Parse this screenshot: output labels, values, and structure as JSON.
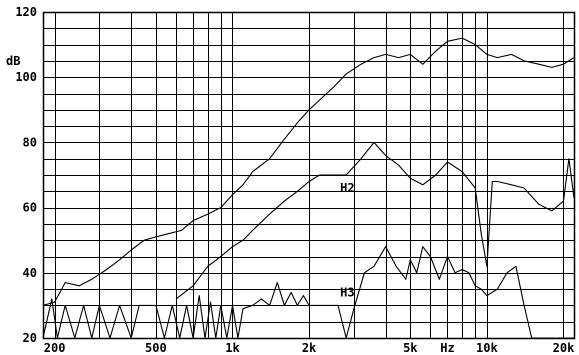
{
  "chart_data": {
    "type": "line",
    "title": "",
    "xlabel": "Hz",
    "ylabel": "dB",
    "x_scale": "log",
    "xlim": [
      180,
      22000
    ],
    "ylim": [
      20,
      120
    ],
    "grid": true,
    "x_ticks": [
      {
        "value": 200,
        "label": "200"
      },
      {
        "value": 500,
        "label": "500"
      },
      {
        "value": 1000,
        "label": "1k"
      },
      {
        "value": 2000,
        "label": "2k"
      },
      {
        "value": 5000,
        "label": "5k"
      },
      {
        "value": 10000,
        "label": "10k"
      },
      {
        "value": 20000,
        "label": "20k"
      }
    ],
    "y_ticks": [
      20,
      40,
      60,
      80,
      100,
      120
    ],
    "annotations": [
      {
        "text": "H2",
        "x": 2900,
        "y": 66
      },
      {
        "text": "H3",
        "x": 2900,
        "y": 34
      }
    ],
    "series": [
      {
        "name": "",
        "x": [
          180,
          200,
          220,
          250,
          280,
          320,
          360,
          400,
          450,
          500,
          560,
          630,
          700,
          800,
          900,
          1000,
          1100,
          1200,
          1400,
          1600,
          1800,
          2000,
          2200,
          2500,
          2800,
          3200,
          3600,
          4000,
          4500,
          5000,
          5600,
          6300,
          7000,
          8000,
          9000,
          10000,
          11000,
          12500,
          14000,
          16000,
          18000,
          20000,
          22000
        ],
        "y": [
          30,
          31,
          37,
          36,
          38,
          41,
          44,
          47,
          50,
          51,
          52,
          53,
          56,
          58,
          60,
          64,
          67,
          71,
          75,
          81,
          86,
          90,
          93,
          97,
          101,
          104,
          106,
          107,
          106,
          107,
          104,
          108,
          111,
          112,
          110,
          107,
          106,
          107,
          105,
          104,
          103,
          104,
          106
        ]
      },
      {
        "name": "",
        "x": [
          600,
          700,
          800,
          900,
          1000,
          1100,
          1200,
          1400,
          1600,
          1800,
          2000,
          2200,
          2500,
          2800,
          3200,
          3600,
          4000,
          4500,
          5000,
          5600,
          6300,
          7000,
          8000,
          9000,
          9500,
          10000,
          10500,
          11000,
          12500,
          14000,
          16000,
          18000,
          20000,
          21000,
          22000
        ],
        "y": [
          32,
          36,
          42,
          45,
          48,
          50,
          53,
          58,
          62,
          65,
          68,
          70,
          70,
          70,
          75,
          80,
          76,
          73,
          69,
          67,
          70,
          74,
          71,
          66,
          52,
          42,
          68,
          68,
          67,
          66,
          61,
          59,
          62,
          75,
          63
        ]
      },
      {
        "name": "",
        "x": [
          180,
          195,
          205,
          220,
          240,
          260,
          280,
          300,
          330,
          360,
          400,
          430,
          460,
          500,
          540,
          580,
          620,
          660,
          700,
          740,
          780,
          820,
          860,
          900,
          950,
          1000,
          1050,
          1100,
          1200,
          1300,
          1400,
          1500,
          1600,
          1700,
          1800,
          1900,
          2000,
          2200,
          2400,
          2600,
          2800,
          3000,
          3300,
          3600,
          4000,
          4400,
          4800,
          5000,
          5300,
          5600,
          6000,
          6500,
          7000,
          7500,
          8000,
          8500,
          9000,
          9500,
          10000,
          11000,
          12000,
          13000,
          14000,
          15000,
          16000,
          17000,
          18000,
          19000,
          20000,
          21000,
          22000
        ],
        "y": [
          20,
          32,
          20,
          30,
          20,
          30,
          20,
          30,
          20,
          30,
          20,
          30,
          30,
          30,
          20,
          30,
          20,
          30,
          20,
          33,
          20,
          31,
          20,
          30,
          20,
          30,
          20,
          29,
          30,
          32,
          30,
          37,
          30,
          34,
          30,
          33,
          30,
          30,
          30,
          30,
          20,
          29,
          40,
          42,
          48,
          42,
          38,
          44,
          40,
          48,
          45,
          38,
          45,
          40,
          41,
          40,
          36,
          35,
          33,
          35,
          40,
          42,
          30,
          20,
          20,
          20,
          20,
          20,
          20,
          20,
          20
        ]
      }
    ]
  }
}
